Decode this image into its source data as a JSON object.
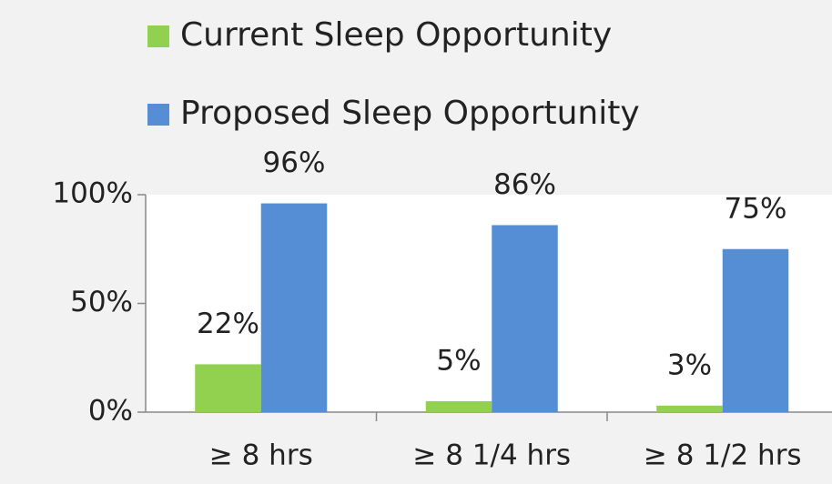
{
  "chart_data": {
    "type": "bar",
    "categories": [
      "≥ 8 hrs",
      "≥ 8 1/4 hrs",
      "≥ 8 1/2 hrs"
    ],
    "series": [
      {
        "name": "Current Sleep Opportunity",
        "color": "#92d050",
        "values": [
          22,
          5,
          3
        ],
        "value_labels": [
          "22%",
          "5%",
          "3%"
        ]
      },
      {
        "name": "Proposed Sleep Opportunity",
        "color": "#558ed5",
        "values": [
          96,
          86,
          75
        ],
        "value_labels": [
          "96%",
          "86%",
          "75%"
        ]
      }
    ],
    "ylim": [
      0,
      100
    ],
    "yticks": [
      {
        "value": 0,
        "label": "0%"
      },
      {
        "value": 50,
        "label": "50%"
      },
      {
        "value": 100,
        "label": "100%"
      }
    ],
    "legend": "top"
  }
}
